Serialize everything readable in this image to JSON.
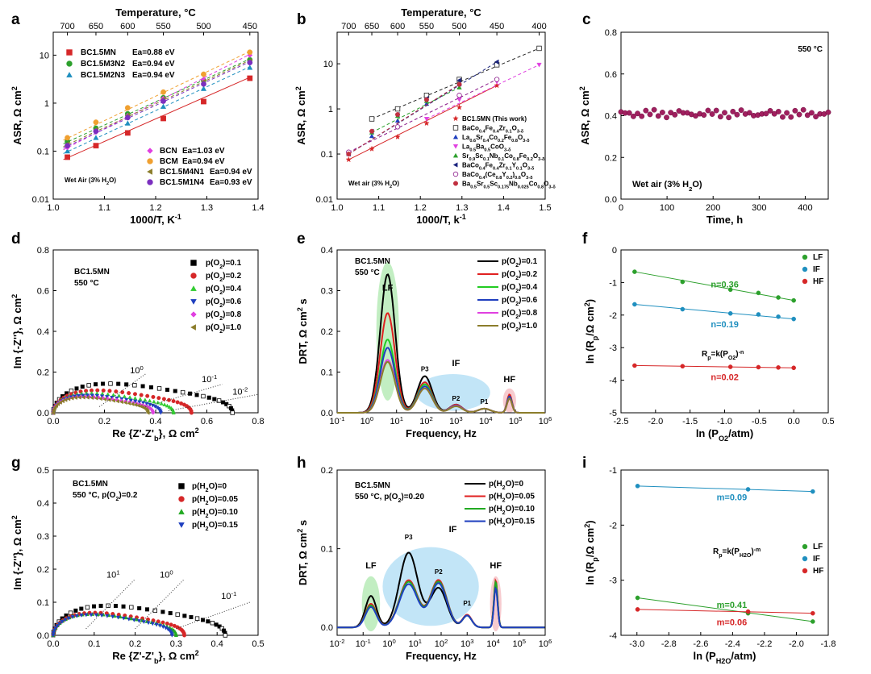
{
  "panels": {
    "a": {
      "label": "a",
      "type": "scatter",
      "xlabel": "1000/T, K",
      "xlabel_sup": "-1",
      "ylabel": "ASR, Ω cm",
      "ylabel_sup": "2",
      "top_label": "Temperature, °C",
      "top_ticks": [
        "700",
        "650",
        "600",
        "550",
        "500",
        "450"
      ],
      "top_ticks_K": [
        1.0277,
        1.0834,
        1.1454,
        1.215,
        1.2937,
        1.3839
      ],
      "xlim": [
        1.0,
        1.4
      ],
      "xticks": [
        "1.0",
        "1.1",
        "1.2",
        "1.3",
        "1.4"
      ],
      "xtick_vals": [
        1.0,
        1.1,
        1.2,
        1.3,
        1.4
      ],
      "ylim": [
        0.01,
        30
      ],
      "yscale": "log",
      "yticks": [
        "0.01",
        "0.1",
        "1",
        "10"
      ],
      "ytick_vals": [
        0.01,
        0.1,
        1,
        10
      ],
      "x": [
        1.0277,
        1.0834,
        1.1454,
        1.215,
        1.2937,
        1.3839
      ],
      "note": "Wet Air (3% H",
      "note_sub": "2",
      "note_end": "O)",
      "series": [
        {
          "name": "BC1.5MN",
          "ea": "Ea=0.88 eV",
          "color": "#d62728",
          "marker": "square",
          "y": [
            0.075,
            0.13,
            0.24,
            0.48,
            1.08,
            3.3
          ]
        },
        {
          "name": "BC1.5M3N2",
          "ea": "Ea=0.94 eV",
          "color": "#2ca02c",
          "marker": "circle",
          "y": [
            0.16,
            0.3,
            0.6,
            1.3,
            3.0,
            8.0
          ]
        },
        {
          "name": "BC1.5M2N3",
          "ea": "Ea=0.94 eV",
          "color": "#1f8fbf",
          "marker": "triangle",
          "y": [
            0.1,
            0.19,
            0.38,
            0.85,
            2.0,
            5.5
          ]
        },
        {
          "name": "BCN",
          "ea": "Ea=1.03 eV",
          "color": "#e040e0",
          "marker": "diamond",
          "y": [
            0.12,
            0.25,
            0.55,
            1.25,
            3.1,
            10.0
          ]
        },
        {
          "name": "BCM",
          "ea": "Ea=0.94 eV",
          "color": "#f0a030",
          "marker": "circle",
          "y": [
            0.19,
            0.4,
            0.8,
            1.7,
            4.0,
            11.5
          ]
        },
        {
          "name": "BC1.5M4N1",
          "ea": "Ea=0.94 eV",
          "color": "#8b7d2b",
          "marker": "tri-left",
          "y": [
            0.14,
            0.28,
            0.55,
            1.2,
            2.8,
            7.5
          ]
        },
        {
          "name": "BC1.5M1N4",
          "ea": "Ea=0.93 eV",
          "color": "#7b2fbf",
          "marker": "hexagon",
          "y": [
            0.13,
            0.26,
            0.5,
            1.1,
            2.5,
            7.0
          ]
        }
      ]
    },
    "b": {
      "label": "b",
      "type": "scatter",
      "xlabel": "1000/T, k",
      "xlabel_sup": "-1",
      "ylabel": "ASR, Ω cm",
      "ylabel_sup": "2",
      "top_label": "Temperature, °C",
      "top_ticks": [
        "700",
        "650",
        "600",
        "550",
        "500",
        "450",
        "400"
      ],
      "top_ticks_K": [
        1.0277,
        1.0834,
        1.1454,
        1.215,
        1.2937,
        1.3839,
        1.4855
      ],
      "xlim": [
        1.0,
        1.5
      ],
      "xticks": [
        "1.0",
        "1.1",
        "1.2",
        "1.3",
        "1.4",
        "1.5"
      ],
      "xtick_vals": [
        1.0,
        1.1,
        1.2,
        1.3,
        1.4,
        1.5
      ],
      "ylim": [
        0.01,
        50
      ],
      "yscale": "log",
      "yticks": [
        "0.01",
        "0.1",
        "1",
        "10"
      ],
      "ytick_vals": [
        0.01,
        0.1,
        1,
        10
      ],
      "note": "Wet air (3% H",
      "note_sub": "2",
      "note_end": "O)",
      "series": [
        {
          "name": "BC1.5MN (This work)",
          "color": "#d62728",
          "marker": "star",
          "x": [
            1.0277,
            1.0834,
            1.1454,
            1.215,
            1.2937,
            1.3839
          ],
          "y": [
            0.075,
            0.13,
            0.24,
            0.48,
            1.08,
            3.3
          ]
        },
        {
          "name": "BaCo0.4Fe0.4Zr0.1O3-δ",
          "color": "#222222",
          "marker": "half-square",
          "x": [
            1.0834,
            1.1454,
            1.215,
            1.2937,
            1.3839,
            1.4855
          ],
          "y": [
            0.6,
            1.0,
            2.0,
            4.5,
            9.5,
            22.0
          ]
        },
        {
          "name": "La0.6Sr0.4Co0.2Fe0.8O3-δ",
          "color": "#1f3fbf",
          "marker": "triangle",
          "x": [
            1.0277,
            1.0834,
            1.1454,
            1.215,
            1.2937
          ],
          "y": [
            0.1,
            0.25,
            0.55,
            1.3,
            3.5
          ]
        },
        {
          "name": "La0.5Ba0.5CoO3-δ",
          "color": "#e040e0",
          "marker": "tri-down",
          "x": [
            1.215,
            1.2937,
            1.3839,
            1.4855
          ],
          "y": [
            0.6,
            1.6,
            4.0,
            9.5
          ]
        },
        {
          "name": "Sr0.9Sc0.1Nb0.1Co0.8Fe0.2O3-δ",
          "color": "#2ca02c",
          "marker": "triangle",
          "x": [
            1.0834,
            1.1454,
            1.215,
            1.2937
          ],
          "y": [
            0.3,
            0.7,
            1.5,
            3.0
          ]
        },
        {
          "name": "BaCo0.4Fe0.4Zr0.1Y0.1O3-δ",
          "color": "#1a237e",
          "marker": "tri-left",
          "x": [
            1.0277,
            1.0834,
            1.1454,
            1.215,
            1.2937,
            1.3839
          ],
          "y": [
            0.1,
            0.32,
            0.75,
            1.7,
            4.3,
            11.0
          ]
        },
        {
          "name": "BaCo0.4(Ce0.8Y0.2)0.6O3-δ",
          "color": "#8b1a8b",
          "marker": "hexagon",
          "x": [
            1.0277,
            1.1454,
            1.2937,
            1.3839
          ],
          "y": [
            0.11,
            0.4,
            2.0,
            4.5
          ]
        },
        {
          "name": "Ba0.5Sr0.5Sc0.175Nb0.025Co0.8O3-δ",
          "color": "#c03040",
          "marker": "circle",
          "x": [
            1.0277,
            1.0834,
            1.1454,
            1.215,
            1.2937
          ],
          "y": [
            0.1,
            0.32,
            0.75,
            1.6,
            3.5
          ]
        }
      ]
    },
    "c": {
      "label": "c",
      "type": "scatter",
      "xlabel": "Time, h",
      "ylabel": "ASR, Ω cm",
      "ylabel_sup": "2",
      "xlim": [
        0,
        450
      ],
      "xticks": [
        "0",
        "100",
        "200",
        "300",
        "400"
      ],
      "xtick_vals": [
        0,
        100,
        200,
        300,
        400
      ],
      "ylim": [
        0,
        0.8
      ],
      "yticks": [
        "0.0",
        "0.2",
        "0.4",
        "0.6",
        "0.8"
      ],
      "ytick_vals": [
        0,
        0.2,
        0.4,
        0.6,
        0.8
      ],
      "temp": "550 °C",
      "note": "Wet air (3% H",
      "note_sub": "2",
      "note_end": "O)",
      "color": "#a0205f",
      "y_mean": 0.41
    },
    "d": {
      "label": "d",
      "type": "nyquist",
      "title1": "BC1.5MN",
      "title2": "550 °C",
      "xlabel": "Re {Z'-Z'",
      "xlabel_sub": "b",
      "xlabel_end": "}, Ω cm",
      "xlabel_sup": "2",
      "ylabel": "Im {-Z''}, Ω cm",
      "ylabel_sup": "2",
      "xlim": [
        0,
        0.8
      ],
      "xticks": [
        "0.0",
        "0.2",
        "0.4",
        "0.6",
        "0.8"
      ],
      "xtick_vals": [
        0,
        0.2,
        0.4,
        0.6,
        0.8
      ],
      "ylim": [
        0,
        0.8
      ],
      "yticks": [
        "0.0",
        "0.2",
        "0.4",
        "0.6",
        "0.8"
      ],
      "ytick_vals": [
        0,
        0.2,
        0.4,
        0.6,
        0.8
      ],
      "freq_labels": [
        "10",
        "10",
        "10"
      ],
      "freq_sups": [
        "0",
        "-1",
        "-2"
      ],
      "series": [
        {
          "name": "p(O",
          "sub": "2",
          "end": ")=0.1",
          "color": "#000000",
          "marker": "square",
          "r": 0.7
        },
        {
          "name": "p(O",
          "sub": "2",
          "end": ")=0.2",
          "color": "#d62728",
          "marker": "circle",
          "r": 0.54
        },
        {
          "name": "p(O",
          "sub": "2",
          "end": ")=0.4",
          "color": "#33cc33",
          "marker": "triangle",
          "r": 0.47
        },
        {
          "name": "p(O",
          "sub": "2",
          "end": ")=0.6",
          "color": "#1f3fbf",
          "marker": "tri-down",
          "r": 0.42
        },
        {
          "name": "p(O",
          "sub": "2",
          "end": ")=0.8",
          "color": "#e040e0",
          "marker": "diamond",
          "r": 0.39
        },
        {
          "name": "p(O",
          "sub": "2",
          "end": ")=1.0",
          "color": "#8b7d2b",
          "marker": "tri-left",
          "r": 0.37
        }
      ]
    },
    "e": {
      "label": "e",
      "type": "line",
      "title1": "BC1.5MN",
      "title2": "550 °C",
      "xlabel": "Frequency, Hz",
      "ylabel": "DRT, Ω cm",
      "ylabel_sup": "2",
      "ylabel_end": " s",
      "xlim_exp": [
        -1,
        6
      ],
      "xtick_exps": [
        "-1",
        "0",
        "1",
        "2",
        "3",
        "4",
        "5",
        "6"
      ],
      "ylim": [
        0,
        0.4
      ],
      "yticks": [
        "0.0",
        "0.1",
        "0.2",
        "0.3",
        "0.4"
      ],
      "ytick_vals": [
        0,
        0.1,
        0.2,
        0.3,
        0.4
      ],
      "regions": [
        "LF",
        "IF",
        "HF"
      ],
      "peaks": [
        "P3",
        "P2",
        "P1"
      ],
      "series": [
        {
          "name": "p(O",
          "sub": "2",
          "end": ")=0.1",
          "color": "#000000",
          "peaks": [
            0.34,
            0.09,
            0.02,
            0.01,
            0.04
          ]
        },
        {
          "name": "p(O",
          "sub": "2",
          "end": ")=0.2",
          "color": "#e02020",
          "peaks": [
            0.245,
            0.075,
            0.02,
            0.01,
            0.045
          ]
        },
        {
          "name": "p(O",
          "sub": "2",
          "end": ")=0.4",
          "color": "#22cc22",
          "peaks": [
            0.18,
            0.07,
            0.018,
            0.01,
            0.04
          ]
        },
        {
          "name": "p(O",
          "sub": "2",
          "end": ")=0.6",
          "color": "#1f3fbf",
          "peaks": [
            0.16,
            0.065,
            0.018,
            0.01,
            0.04
          ]
        },
        {
          "name": "p(O",
          "sub": "2",
          "end": ")=0.8",
          "color": "#e040e0",
          "peaks": [
            0.13,
            0.06,
            0.017,
            0.01,
            0.035
          ]
        },
        {
          "name": "p(O",
          "sub": "2",
          "end": ")=1.0",
          "color": "#8b7d2b",
          "peaks": [
            0.125,
            0.06,
            0.016,
            0.01,
            0.035
          ]
        }
      ]
    },
    "f": {
      "label": "f",
      "type": "scatter",
      "xlabel": "ln (P",
      "xlabel_sub": "O2",
      "xlabel_end": "/atm)",
      "ylabel": "ln (R",
      "ylabel_sub": "p",
      "ylabel_end": "/Ω cm",
      "ylabel_sup": "2",
      "ylabel_close": ")",
      "xlim": [
        -2.5,
        0.5
      ],
      "xticks": [
        "-2.5",
        "-2.0",
        "-1.5",
        "-1.0",
        "-0.5",
        "0.0",
        "0.5"
      ],
      "xtick_vals": [
        -2.5,
        -2.0,
        -1.5,
        -1.0,
        -0.5,
        0.0,
        0.5
      ],
      "ylim": [
        -5,
        0
      ],
      "yticks": [
        "-5",
        "-4",
        "-3",
        "-2",
        "-1",
        "0"
      ],
      "ytick_vals": [
        -5,
        -4,
        -3,
        -2,
        -1,
        0
      ],
      "x": [
        -2.303,
        -1.609,
        -0.916,
        -0.511,
        -0.223,
        0.0
      ],
      "formula": "R",
      "formula_sub": "p",
      "formula_mid": "=k(P",
      "formula_sub2": "O2",
      "formula_end": ")",
      "formula_sup": "-n",
      "series": [
        {
          "name": "LF",
          "color": "#2ca02c",
          "n_label": "n=0.36",
          "y": [
            -0.67,
            -0.98,
            -1.22,
            -1.32,
            -1.46,
            -1.55
          ]
        },
        {
          "name": "IF",
          "color": "#1f8fbf",
          "n_label": "n=0.19",
          "y": [
            -1.67,
            -1.82,
            -1.95,
            -1.98,
            -2.05,
            -2.12
          ]
        },
        {
          "name": "HF",
          "color": "#d62728",
          "n_label": "n=0.02",
          "y": [
            -3.55,
            -3.57,
            -3.59,
            -3.6,
            -3.61,
            -3.62
          ]
        }
      ]
    },
    "g": {
      "label": "g",
      "type": "nyquist",
      "title1": "BC1.5MN",
      "title2": "550 °C, p(O",
      "title2_sub": "2",
      "title2_end": ")=0.2",
      "xlabel": "Re {Z'-Z'",
      "xlabel_sub": "b",
      "xlabel_end": "}, Ω cm",
      "xlabel_sup": "2",
      "ylabel": "Im {-Z''}, Ω cm",
      "ylabel_sup": "2",
      "xlim": [
        0,
        0.5
      ],
      "xticks": [
        "0.0",
        "0.1",
        "0.2",
        "0.3",
        "0.4",
        "0.5"
      ],
      "xtick_vals": [
        0,
        0.1,
        0.2,
        0.3,
        0.4,
        0.5
      ],
      "ylim": [
        0,
        0.5
      ],
      "yticks": [
        "0.0",
        "0.1",
        "0.2",
        "0.3",
        "0.4",
        "0.5"
      ],
      "ytick_vals": [
        0,
        0.1,
        0.2,
        0.3,
        0.4,
        0.5
      ],
      "freq_labels": [
        "10",
        "10",
        "10"
      ],
      "freq_sups": [
        "1",
        "0",
        "-1"
      ],
      "series": [
        {
          "name": "p(H",
          "sub": "2",
          "end": "O)=0",
          "color": "#000000",
          "marker": "square",
          "r": 0.42
        },
        {
          "name": "p(H",
          "sub": "2",
          "end": "O)=0.05",
          "color": "#d62728",
          "marker": "circle",
          "r": 0.32
        },
        {
          "name": "p(H",
          "sub": "2",
          "end": "O)=0.10",
          "color": "#22aa22",
          "marker": "triangle",
          "r": 0.3
        },
        {
          "name": "p(H",
          "sub": "2",
          "end": "O)=0.15",
          "color": "#1f3fbf",
          "marker": "tri-down",
          "r": 0.29
        }
      ]
    },
    "h": {
      "label": "h",
      "type": "line",
      "title1": "BC1.5MN",
      "title2": "550 °C, p(O",
      "title2_sub": "2",
      "title2_end": ")=0.20",
      "xlabel": "Frequency, Hz",
      "ylabel": "DRT, Ω cm",
      "ylabel_sup": "2",
      "ylabel_end": " s",
      "xlim_exp": [
        -2,
        6
      ],
      "xtick_exps": [
        "-2",
        "-1",
        "0",
        "1",
        "2",
        "3",
        "4",
        "5",
        "6"
      ],
      "ylim": [
        -0.01,
        0.2
      ],
      "yticks": [
        "0.0",
        "0.1",
        "0.2"
      ],
      "ytick_vals": [
        0,
        0.1,
        0.2
      ],
      "regions": [
        "LF",
        "IF",
        "HF"
      ],
      "peaks": [
        "P3",
        "P2",
        "P1"
      ],
      "series": [
        {
          "name": "p(H",
          "sub": "2",
          "end": "O)=0",
          "color": "#000000",
          "peaks": [
            0.04,
            0.095,
            0.05,
            0.015,
            0.055
          ]
        },
        {
          "name": "p(H",
          "sub": "2",
          "end": "O)=0.05",
          "color": "#e02020",
          "peaks": [
            0.03,
            0.06,
            0.06,
            0.016,
            0.06
          ]
        },
        {
          "name": "p(H",
          "sub": "2",
          "end": "O)=0.10",
          "color": "#22aa22",
          "peaks": [
            0.028,
            0.058,
            0.058,
            0.015,
            0.058
          ]
        },
        {
          "name": "p(H",
          "sub": "2",
          "end": "O)=0.15",
          "color": "#1f3fbf",
          "peaks": [
            0.026,
            0.055,
            0.056,
            0.015,
            0.05
          ]
        }
      ]
    },
    "i": {
      "label": "i",
      "type": "scatter",
      "xlabel": "ln (P",
      "xlabel_sub": "H2O",
      "xlabel_end": "/atm)",
      "ylabel": "ln (R",
      "ylabel_sub": "p",
      "ylabel_end": "/Ω cm",
      "ylabel_sup": "2",
      "ylabel_close": ")",
      "xlim": [
        -3.1,
        -1.8
      ],
      "xticks": [
        "-3.0",
        "-2.8",
        "-2.6",
        "-2.4",
        "-2.2",
        "-2.0",
        "-1.8"
      ],
      "xtick_vals": [
        -3.0,
        -2.8,
        -2.6,
        -2.4,
        -2.2,
        -2.0,
        -1.8
      ],
      "ylim": [
        -4,
        -1
      ],
      "yticks": [
        "-4",
        "-3",
        "-2",
        "-1"
      ],
      "ytick_vals": [
        -4,
        -3,
        -2,
        -1
      ],
      "x": [
        -2.996,
        -2.303,
        -1.897
      ],
      "formula": "R",
      "formula_sub": "p",
      "formula_mid": "=k(P",
      "formula_sub2": "H2O",
      "formula_end": ")",
      "formula_sup": "-m",
      "series": [
        {
          "name": "LF",
          "color": "#2ca02c",
          "m_label": "m=0.41",
          "y": [
            -3.32,
            -3.6,
            -3.75
          ]
        },
        {
          "name": "IF",
          "color": "#1f8fbf",
          "m_label": "m=0.09",
          "y": [
            -1.29,
            -1.35,
            -1.39
          ]
        },
        {
          "name": "HF",
          "color": "#d62728",
          "m_label": "m=0.06",
          "y": [
            -3.53,
            -3.57,
            -3.6
          ]
        }
      ]
    }
  }
}
